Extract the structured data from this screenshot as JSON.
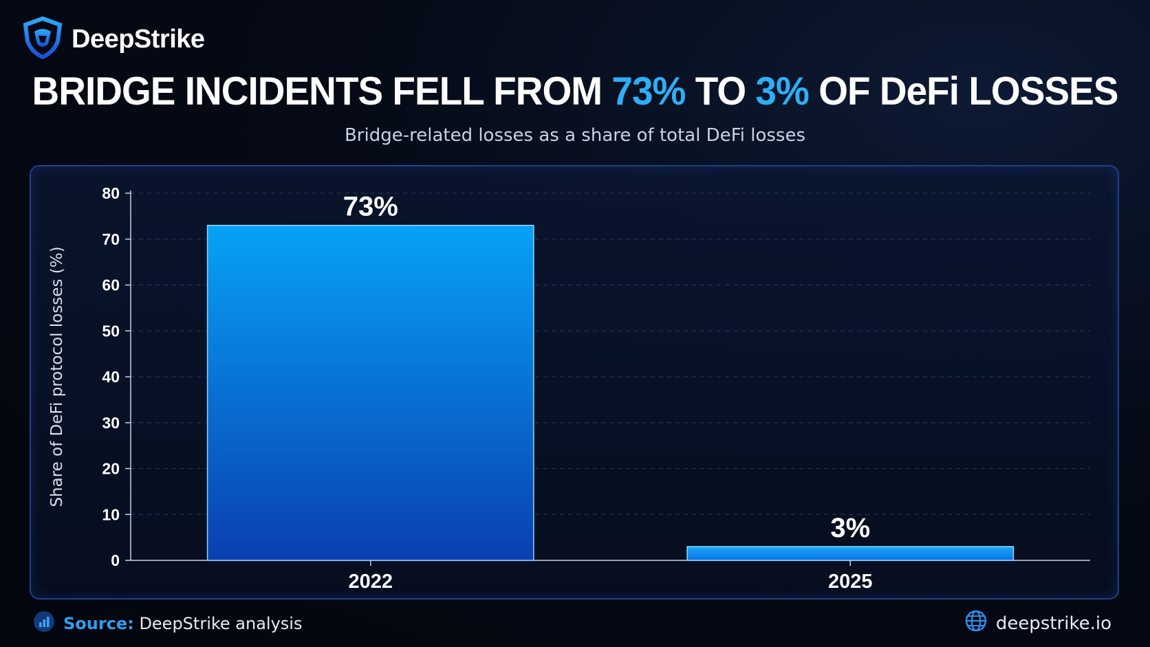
{
  "brand": {
    "name": "DeepStrike",
    "icon": "shield-logo-icon"
  },
  "headline": {
    "part1": "BRIDGE INCIDENTS FELL FROM ",
    "value1": "73%",
    "part2": " TO ",
    "value2": "3%",
    "part3": " OF DeFi LOSSES"
  },
  "subtitle": "Bridge-related losses as a share of total DeFi losses",
  "chart_data": {
    "type": "bar",
    "categories": [
      "2022",
      "2025"
    ],
    "values": [
      73,
      3
    ],
    "data_labels": [
      "73%",
      "3%"
    ],
    "ylabel": "Share of DeFi protocol losses (%)",
    "xlabel": "",
    "ylim": [
      0,
      80
    ],
    "yticks": [
      0,
      10,
      20,
      30,
      40,
      50,
      60,
      70,
      80
    ],
    "grid": true,
    "colors": {
      "bar_top": "#07a2f5",
      "bar_bottom": "#0a3fb0",
      "accent": "#2eaef5"
    }
  },
  "footer": {
    "source_key": "Source:",
    "source_value": "DeepStrike analysis",
    "source_icon": "bar-chart-icon",
    "website": "deepstrike.io",
    "website_icon": "globe-icon"
  }
}
